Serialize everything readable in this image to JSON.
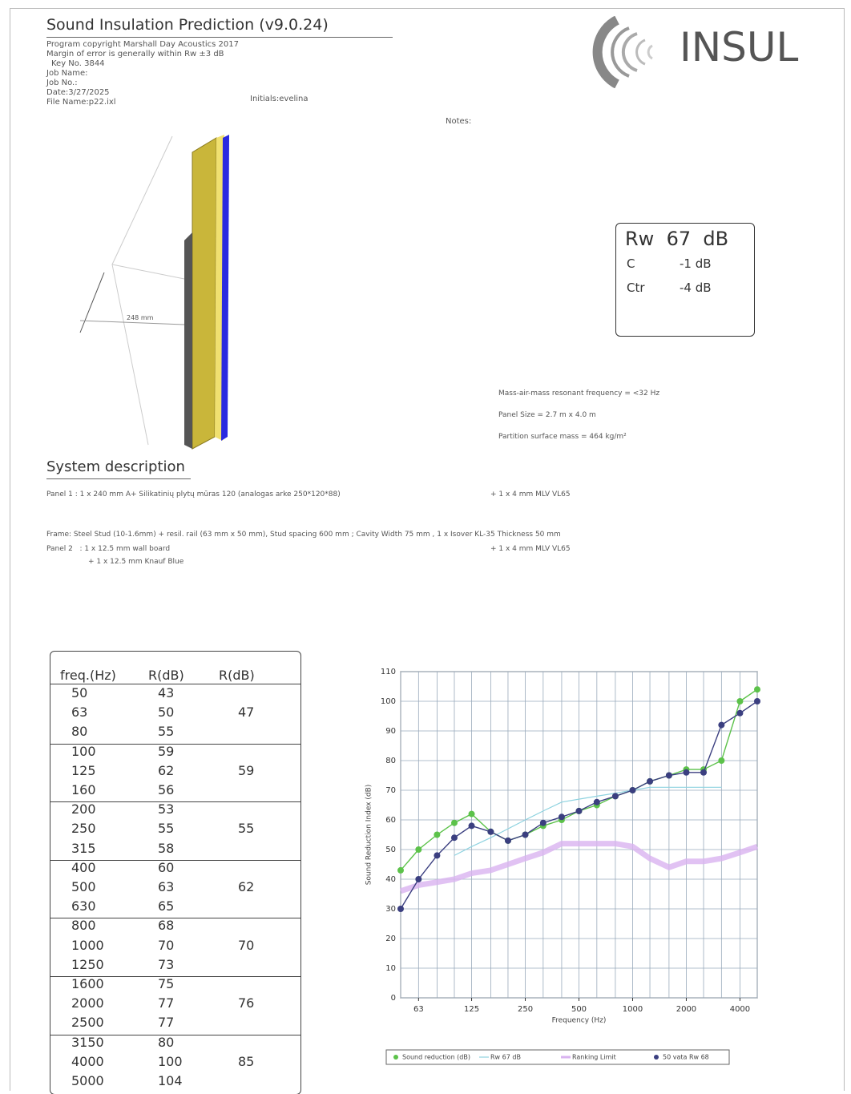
{
  "header": {
    "title": "Sound Insulation Prediction (v9.0.24)",
    "lines": [
      "Program copyright Marshall Day Acoustics 2017",
      "Margin of error is generally within Rw ±3 dB",
      "Key No. 3844",
      "Job Name:",
      "Job No.:",
      "Date:3/27/2025",
      "File Name:p22.ixl"
    ],
    "initials": "Initials:evelina",
    "notes": "Notes:",
    "logo": "INSUL"
  },
  "drawing": {
    "dimension": "248 mm"
  },
  "rating": {
    "rw": "Rw  67  dB",
    "c_label": "C",
    "c_value": "-1 dB",
    "ctr_label": "Ctr",
    "ctr_value": "-4 dB"
  },
  "properties": [
    "Mass-air-mass resonant frequency = <32 Hz",
    "Panel Size = 2.7 m x 4.0 m",
    "Partition surface mass = 464 kg/m²"
  ],
  "system": {
    "title": "System description",
    "panel1": "Panel 1   : 1 x 240 mm A+ Silikatinių plytų mūras 120 (analogas arke 250*120*88)",
    "panel1_extra": "+ 1 x 4 mm MLV VL65",
    "frame": "Frame: Steel Stud (10-1.6mm) + resil. rail (63 mm x 50 mm), Stud spacing 600 mm ; Cavity Width 75 mm , 1 x Isover KL-35 Thickness 50 mm",
    "panel2": "Panel 2   : 1 x 12.5 mm wall board",
    "panel2_extra": "+ 1 x 4 mm MLV VL65",
    "panel2_line2": "+ 1 x 12.5 mm Knauf Blue"
  },
  "table": {
    "header": [
      "freq.(Hz)",
      "R(dB)",
      "R(dB)"
    ],
    "groups": [
      {
        "rows": [
          [
            50,
            43
          ],
          [
            63,
            50
          ],
          [
            80,
            55
          ]
        ],
        "octave": 47
      },
      {
        "rows": [
          [
            100,
            59
          ],
          [
            125,
            62
          ],
          [
            160,
            56
          ]
        ],
        "octave": 59
      },
      {
        "rows": [
          [
            200,
            53
          ],
          [
            250,
            55
          ],
          [
            315,
            58
          ]
        ],
        "octave": 55
      },
      {
        "rows": [
          [
            400,
            60
          ],
          [
            500,
            63
          ],
          [
            630,
            65
          ]
        ],
        "octave": 62
      },
      {
        "rows": [
          [
            800,
            68
          ],
          [
            1000,
            70
          ],
          [
            1250,
            73
          ]
        ],
        "octave": 70
      },
      {
        "rows": [
          [
            1600,
            75
          ],
          [
            2000,
            77
          ],
          [
            2500,
            77
          ]
        ],
        "octave": 76
      },
      {
        "rows": [
          [
            3150,
            80
          ],
          [
            4000,
            100
          ],
          [
            5000,
            104
          ]
        ],
        "octave": 85
      }
    ]
  },
  "chart_data": {
    "type": "line",
    "x_label": "Frequency (Hz)",
    "y_label": "Sound Reduction Index (dB)",
    "x": [
      50,
      63,
      80,
      100,
      125,
      160,
      200,
      250,
      315,
      400,
      500,
      630,
      800,
      1000,
      1250,
      1600,
      2000,
      2500,
      3150,
      4000,
      5000
    ],
    "xscale": "log",
    "xlim": [
      50,
      5000
    ],
    "xticks": [
      63,
      125,
      250,
      500,
      1000,
      2000,
      4000
    ],
    "ylim": [
      0,
      110
    ],
    "yticks": [
      0,
      10,
      20,
      30,
      40,
      50,
      60,
      70,
      80,
      90,
      100,
      110
    ],
    "grid": true,
    "series": [
      {
        "name": "Sound reduction (dB)",
        "color": "#5cc24a",
        "style": "marker",
        "values": [
          43,
          50,
          55,
          59,
          62,
          56,
          53,
          55,
          58,
          60,
          63,
          65,
          68,
          70,
          73,
          75,
          77,
          77,
          80,
          100,
          104
        ]
      },
      {
        "name": "Rw 67 dB",
        "color": "#8fd3e0",
        "style": "thin",
        "values": [
          null,
          null,
          null,
          48,
          51,
          54,
          57,
          60,
          63,
          66,
          67,
          68,
          69,
          70,
          71,
          71,
          71,
          71,
          71,
          null,
          null
        ]
      },
      {
        "name": "Ranking Limit",
        "color": "#d9b3f0",
        "style": "thick",
        "values": [
          36,
          38,
          39,
          40,
          42,
          43,
          45,
          47,
          49,
          52,
          52,
          52,
          52,
          51,
          47,
          44,
          46,
          46,
          47,
          49,
          51
        ]
      },
      {
        "name": "50 vata Rw 68",
        "color": "#3b3f80",
        "style": "marker",
        "values": [
          30,
          40,
          48,
          54,
          58,
          56,
          53,
          55,
          59,
          61,
          63,
          66,
          68,
          70,
          73,
          75,
          76,
          76,
          92,
          96,
          100
        ]
      }
    ]
  }
}
